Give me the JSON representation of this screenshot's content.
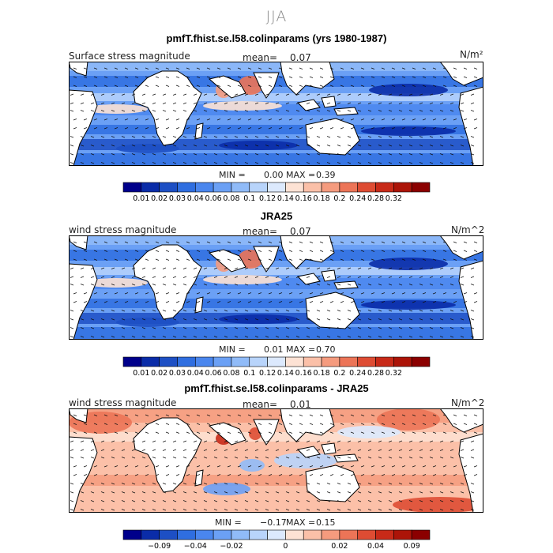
{
  "page": {
    "season": "JJA"
  },
  "panels": [
    {
      "title": "pmfT.fhist.se.l58.colinparams (yrs 1980-1987)",
      "left_label": "Surface stress magnitude",
      "mean_label": "mean=",
      "mean_value": "0.07",
      "units": "N/m²",
      "min_label": "MIN =",
      "min_value": "0.00",
      "max_label": "MAX =",
      "max_value": "0.39"
    },
    {
      "title": "JRA25",
      "left_label": "wind stress magnitude",
      "mean_label": "mean=",
      "mean_value": "0.07",
      "units": "N/m^2",
      "min_label": "MIN =",
      "min_value": "0.01",
      "max_label": "MAX =",
      "max_value": "0.70"
    },
    {
      "title": "pmfT.fhist.se.l58.colinparams - JRA25",
      "left_label": "wind stress magnitude",
      "mean_label": "mean=",
      "mean_value": "0.01",
      "units": "N/m^2",
      "min_label": "MIN =",
      "min_value": "−0.17",
      "max_label": "MAX =",
      "max_value": "0.15"
    }
  ],
  "chart_data": [
    {
      "type": "heatmap",
      "title": "pmfT.fhist.se.l58.colinparams (yrs 1980-1987)",
      "variable": "Surface stress magnitude",
      "units": "N/m²",
      "mean": 0.07,
      "min": 0.0,
      "max": 0.39,
      "colorbar": {
        "colors": [
          "#00008b",
          "#0a2ca8",
          "#1d4fc4",
          "#2f6ee0",
          "#4a86ee",
          "#6ba0f5",
          "#90bbf8",
          "#b8d4fb",
          "#dce9fd",
          "#fde2d4",
          "#fbc0a8",
          "#f59b7e",
          "#ec7457",
          "#de4c33",
          "#c82a18",
          "#ac1408",
          "#8b0000"
        ],
        "ticks": [
          "0.01",
          "0.02",
          "0.03",
          "0.04",
          "0.06",
          "0.08",
          "0.1",
          "0.12",
          "0.14",
          "0.16",
          "0.18",
          "0.2",
          "0.24",
          "0.28",
          "0.32"
        ]
      }
    },
    {
      "type": "heatmap",
      "title": "JRA25",
      "variable": "wind stress magnitude",
      "units": "N/m^2",
      "mean": 0.07,
      "min": 0.01,
      "max": 0.7,
      "colorbar": {
        "colors": [
          "#00008b",
          "#0a2ca8",
          "#1d4fc4",
          "#2f6ee0",
          "#4a86ee",
          "#6ba0f5",
          "#90bbf8",
          "#b8d4fb",
          "#dce9fd",
          "#fde2d4",
          "#fbc0a8",
          "#f59b7e",
          "#ec7457",
          "#de4c33",
          "#c82a18",
          "#ac1408",
          "#8b0000"
        ],
        "ticks": [
          "0.01",
          "0.02",
          "0.03",
          "0.04",
          "0.06",
          "0.08",
          "0.1",
          "0.12",
          "0.14",
          "0.16",
          "0.18",
          "0.2",
          "0.24",
          "0.28",
          "0.32"
        ]
      }
    },
    {
      "type": "heatmap",
      "title": "pmfT.fhist.se.l58.colinparams - JRA25",
      "variable": "wind stress magnitude",
      "units": "N/m^2",
      "mean": 0.01,
      "min": -0.17,
      "max": 0.15,
      "colorbar": {
        "colors": [
          "#00008b",
          "#0a2ca8",
          "#1d4fc4",
          "#2f6ee0",
          "#4a86ee",
          "#6ba0f5",
          "#90bbf8",
          "#b8d4fb",
          "#dce9fd",
          "#fde2d4",
          "#fbc0a8",
          "#f59b7e",
          "#ec7457",
          "#de4c33",
          "#c82a18",
          "#ac1408",
          "#8b0000"
        ],
        "ticks": [
          {
            "label": "−0.09",
            "after": 1
          },
          {
            "label": "−0.04",
            "after": 3
          },
          {
            "label": "−0.02",
            "after": 5
          },
          {
            "label": "0",
            "after": 8
          },
          {
            "label": "0.02",
            "after": 11
          },
          {
            "label": "0.04",
            "after": 13
          },
          {
            "label": "0.09",
            "after": 15
          }
        ]
      }
    }
  ]
}
